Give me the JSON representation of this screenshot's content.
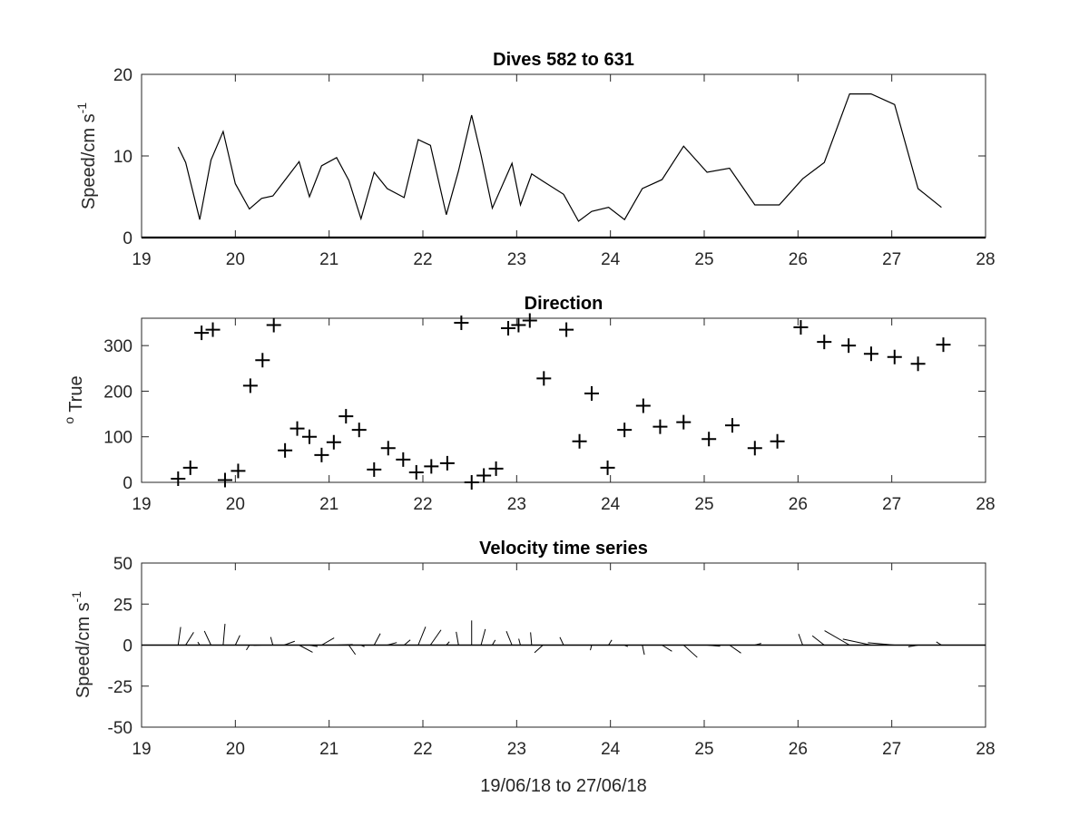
{
  "chart_data": [
    {
      "type": "line",
      "title": "Dives 582 to 631",
      "xlabel": "",
      "ylabel": "Speed/cm s",
      "ylabel_superscript": "-1",
      "xlim": [
        19,
        28
      ],
      "ylim": [
        0,
        20
      ],
      "xticks": [
        "19",
        "20",
        "21",
        "22",
        "23",
        "24",
        "25",
        "26",
        "27",
        "28"
      ],
      "yticks": [
        "0",
        "10",
        "20"
      ],
      "line_color": "#000000",
      "x": [
        19.39,
        19.47,
        19.62,
        19.74,
        19.87,
        20.0,
        20.15,
        20.28,
        20.4,
        20.52,
        20.68,
        20.79,
        20.92,
        21.08,
        21.21,
        21.34,
        21.48,
        21.62,
        21.8,
        21.95,
        22.08,
        22.25,
        22.38,
        22.52,
        22.62,
        22.74,
        22.95,
        23.04,
        23.16,
        23.28,
        23.5,
        23.66,
        23.8,
        23.98,
        24.15,
        24.34,
        24.55,
        24.78,
        25.03,
        25.27,
        25.54,
        25.8,
        26.05,
        26.28,
        26.55,
        26.78,
        27.03,
        27.28,
        27.53
      ],
      "y": [
        11.1,
        9.2,
        2.2,
        9.5,
        13.0,
        6.6,
        3.5,
        4.8,
        5.1,
        6.9,
        9.3,
        5.0,
        8.8,
        9.8,
        7.0,
        2.3,
        8.0,
        6.0,
        4.9,
        12.0,
        11.3,
        2.8,
        8.2,
        15.0,
        10.1,
        3.6,
        9.1,
        4.0,
        7.8,
        6.9,
        5.3,
        2.0,
        3.2,
        3.7,
        2.2,
        6.0,
        7.1,
        11.2,
        8.0,
        8.5,
        4.0,
        4.0,
        7.2,
        9.2,
        17.6,
        17.6,
        16.3,
        6.0,
        3.7
      ]
    },
    {
      "type": "scatter",
      "title": "Direction",
      "xlabel": "",
      "ylabel": "True",
      "ylabel_superscript": "o",
      "xlim": [
        19,
        28
      ],
      "ylim": [
        0,
        360
      ],
      "xticks": [
        "19",
        "20",
        "21",
        "22",
        "23",
        "24",
        "25",
        "26",
        "27",
        "28"
      ],
      "yticks": [
        "0",
        "100",
        "200",
        "300"
      ],
      "marker": "+",
      "marker_color": "#000000",
      "x": [
        19.39,
        19.52,
        19.64,
        19.76,
        19.89,
        20.03,
        20.16,
        20.29,
        20.41,
        20.53,
        20.66,
        20.79,
        20.92,
        21.05,
        21.18,
        21.32,
        21.48,
        21.63,
        21.79,
        21.93,
        22.09,
        22.26,
        22.41,
        22.52,
        22.65,
        22.78,
        22.91,
        23.02,
        23.14,
        23.29,
        23.53,
        23.67,
        23.8,
        23.97,
        24.15,
        24.35,
        24.53,
        24.78,
        25.05,
        25.3,
        25.54,
        25.78,
        26.03,
        26.28,
        26.54,
        26.78,
        27.03,
        27.28,
        27.55
      ],
      "y": [
        8,
        32,
        328,
        335,
        5,
        25,
        212,
        268,
        345,
        70,
        118,
        100,
        60,
        88,
        145,
        115,
        28,
        75,
        50,
        22,
        35,
        42,
        350,
        0,
        15,
        30,
        338,
        345,
        355,
        228,
        335,
        90,
        195,
        32,
        115,
        168,
        122,
        132,
        95,
        125,
        75,
        90,
        340,
        308,
        300,
        282,
        275,
        260,
        302
      ]
    },
    {
      "type": "quiver",
      "title": "Velocity time series",
      "xlabel": "19/06/18 to 27/06/18",
      "ylabel": "Speed/cm s",
      "ylabel_superscript": "-1",
      "xlim": [
        19,
        28
      ],
      "ylim": [
        -50,
        50
      ],
      "xticks": [
        "19",
        "20",
        "21",
        "22",
        "23",
        "24",
        "25",
        "26",
        "27",
        "28"
      ],
      "yticks": [
        "-50",
        "-25",
        "0",
        "25",
        "50"
      ],
      "baseline": 0,
      "stick_color": "#000000",
      "x": [
        19.39,
        19.47,
        19.62,
        19.74,
        19.87,
        20.0,
        20.15,
        20.28,
        20.4,
        20.52,
        20.68,
        20.79,
        20.92,
        21.08,
        21.21,
        21.34,
        21.48,
        21.62,
        21.8,
        21.95,
        22.08,
        22.25,
        22.38,
        22.52,
        22.62,
        22.74,
        22.95,
        23.04,
        23.16,
        23.28,
        23.5,
        23.66,
        23.8,
        23.98,
        24.15,
        24.34,
        24.55,
        24.78,
        25.03,
        25.27,
        25.54,
        25.8,
        26.05,
        26.28,
        26.55,
        26.78,
        27.03,
        27.28,
        27.53
      ],
      "speed": [
        11.1,
        9.2,
        2.2,
        9.5,
        13.0,
        6.6,
        3.5,
        4.8,
        5.1,
        6.9,
        9.3,
        5.0,
        8.8,
        9.8,
        7.0,
        2.3,
        8.0,
        6.0,
        4.9,
        12.0,
        11.3,
        2.8,
        8.2,
        15.0,
        10.1,
        3.6,
        9.1,
        4.0,
        7.8,
        6.9,
        5.3,
        2.0,
        3.2,
        3.7,
        2.2,
        6.0,
        7.1,
        11.2,
        8.0,
        8.5,
        4.0,
        4.0,
        7.2,
        9.2,
        17.6,
        17.6,
        16.3,
        6.0,
        3.7
      ],
      "direction_deg_true": [
        8,
        32,
        328,
        335,
        5,
        25,
        212,
        268,
        345,
        70,
        118,
        100,
        60,
        88,
        145,
        115,
        28,
        75,
        50,
        22,
        35,
        42,
        350,
        0,
        15,
        30,
        338,
        345,
        355,
        228,
        335,
        90,
        195,
        32,
        115,
        168,
        122,
        132,
        95,
        125,
        75,
        90,
        340,
        308,
        300,
        282,
        275,
        260,
        302
      ]
    }
  ]
}
